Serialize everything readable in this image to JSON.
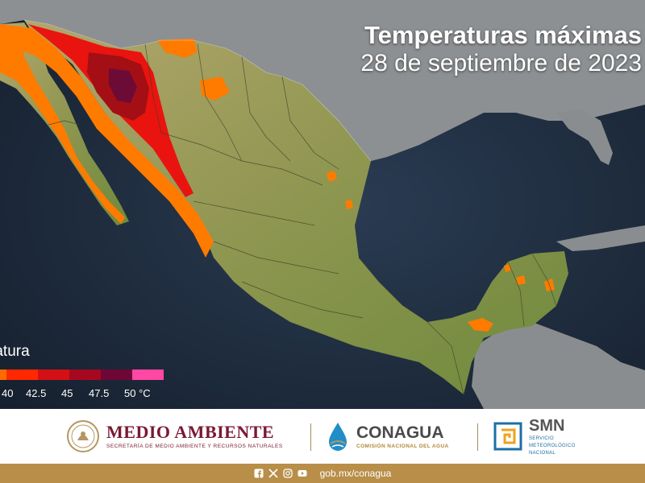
{
  "map": {
    "title": "Temperaturas máximas",
    "subtitle": "28 de septiembre de 2023",
    "colors": {
      "ocean": "#1f2d3e",
      "land_neighbor": "#8b8e90",
      "land_mexico": "#7f8d44",
      "plateau": "#a79e66",
      "t40": "#ff7b00",
      "t42_5": "#e9140f",
      "t45": "#a30f14",
      "t47_5": "#6d0b37"
    }
  },
  "legend": {
    "title": "Temperatura",
    "colors": [
      "#ffa500",
      "#ff6a00",
      "#ff2800",
      "#d41015",
      "#a5081f",
      "#6e0636",
      "#ff47a3"
    ],
    "labels": [
      "40",
      "42.5",
      "45",
      "47.5",
      "50 °C"
    ]
  },
  "footer": {
    "medio_ambiente": {
      "name": "MEDIO AMBIENTE",
      "subtitle": "SECRETARÍA DE MEDIO AMBIENTE Y RECURSOS NATURALES"
    },
    "conagua": {
      "name": "CONAGUA",
      "subtitle": "COMISIÓN NACIONAL DEL AGUA"
    },
    "smn": {
      "name": "SMN",
      "subtitle_line1": "SERVICIO",
      "subtitle_line2": "METEOROLÓGICO",
      "subtitle_line3": "NACIONAL"
    }
  },
  "bottom_bar": {
    "icons": [
      "facebook-icon",
      "x-icon",
      "instagram-icon",
      "youtube-icon"
    ],
    "website": "gob.mx/conagua"
  }
}
